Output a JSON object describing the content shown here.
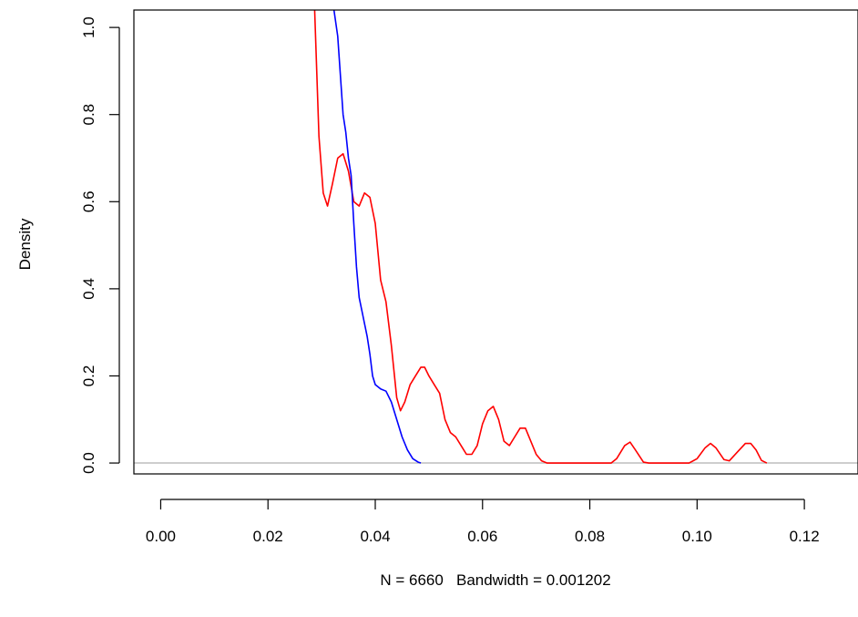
{
  "chart_data": {
    "type": "line",
    "title": "",
    "xlabel": "N = 6660   Bandwidth = 0.001202",
    "ylabel": "Density",
    "xlim": [
      -0.005,
      0.13
    ],
    "ylim": [
      -0.025,
      1.04
    ],
    "x_ticks": [
      0.0,
      0.02,
      0.04,
      0.06,
      0.08,
      0.1,
      0.12
    ],
    "x_tick_labels": [
      "0.00",
      "0.02",
      "0.04",
      "0.06",
      "0.08",
      "0.10",
      "0.12"
    ],
    "y_ticks": [
      0.0,
      0.2,
      0.4,
      0.6,
      0.8,
      1.0
    ],
    "y_tick_labels": [
      "0.0",
      "0.2",
      "0.4",
      "0.6",
      "0.8",
      "1.0"
    ],
    "baseline": {
      "y": 0,
      "color": "#bebebe"
    },
    "grid": false,
    "legend": "none",
    "series": [
      {
        "color": "#ff0000",
        "points": [
          [
            0.0287,
            1.04
          ],
          [
            0.0295,
            0.75
          ],
          [
            0.0303,
            0.62
          ],
          [
            0.0311,
            0.59
          ],
          [
            0.032,
            0.64
          ],
          [
            0.033,
            0.7
          ],
          [
            0.034,
            0.71
          ],
          [
            0.035,
            0.67
          ],
          [
            0.036,
            0.6
          ],
          [
            0.037,
            0.59
          ],
          [
            0.038,
            0.62
          ],
          [
            0.039,
            0.61
          ],
          [
            0.04,
            0.55
          ],
          [
            0.041,
            0.42
          ],
          [
            0.042,
            0.37
          ],
          [
            0.043,
            0.27
          ],
          [
            0.044,
            0.15
          ],
          [
            0.0447,
            0.12
          ],
          [
            0.0455,
            0.14
          ],
          [
            0.0465,
            0.18
          ],
          [
            0.0475,
            0.2
          ],
          [
            0.0485,
            0.22
          ],
          [
            0.0492,
            0.22
          ],
          [
            0.05,
            0.2
          ],
          [
            0.051,
            0.18
          ],
          [
            0.052,
            0.16
          ],
          [
            0.053,
            0.1
          ],
          [
            0.054,
            0.07
          ],
          [
            0.055,
            0.06
          ],
          [
            0.056,
            0.04
          ],
          [
            0.057,
            0.02
          ],
          [
            0.058,
            0.02
          ],
          [
            0.059,
            0.04
          ],
          [
            0.06,
            0.09
          ],
          [
            0.061,
            0.12
          ],
          [
            0.062,
            0.13
          ],
          [
            0.063,
            0.1
          ],
          [
            0.064,
            0.05
          ],
          [
            0.065,
            0.04
          ],
          [
            0.066,
            0.06
          ],
          [
            0.067,
            0.08
          ],
          [
            0.068,
            0.08
          ],
          [
            0.069,
            0.05
          ],
          [
            0.07,
            0.02
          ],
          [
            0.071,
            0.005
          ],
          [
            0.072,
            0.0
          ],
          [
            0.084,
            0.0
          ],
          [
            0.085,
            0.01
          ],
          [
            0.0865,
            0.04
          ],
          [
            0.0875,
            0.048
          ],
          [
            0.0885,
            0.03
          ],
          [
            0.09,
            0.002
          ],
          [
            0.091,
            0.0
          ],
          [
            0.0985,
            0.0
          ],
          [
            0.1,
            0.01
          ],
          [
            0.1015,
            0.035
          ],
          [
            0.1025,
            0.045
          ],
          [
            0.1035,
            0.035
          ],
          [
            0.105,
            0.008
          ],
          [
            0.106,
            0.005
          ],
          [
            0.1075,
            0.025
          ],
          [
            0.109,
            0.045
          ],
          [
            0.11,
            0.045
          ],
          [
            0.111,
            0.03
          ],
          [
            0.112,
            0.006
          ],
          [
            0.113,
            0.0
          ]
        ]
      },
      {
        "color": "#0000ff",
        "points": [
          [
            0.0323,
            1.04
          ],
          [
            0.033,
            0.98
          ],
          [
            0.034,
            0.8
          ],
          [
            0.0345,
            0.76
          ],
          [
            0.035,
            0.7
          ],
          [
            0.0355,
            0.66
          ],
          [
            0.036,
            0.55
          ],
          [
            0.0365,
            0.45
          ],
          [
            0.037,
            0.38
          ],
          [
            0.0375,
            0.35
          ],
          [
            0.038,
            0.32
          ],
          [
            0.0385,
            0.29
          ],
          [
            0.039,
            0.25
          ],
          [
            0.0395,
            0.2
          ],
          [
            0.04,
            0.18
          ],
          [
            0.041,
            0.17
          ],
          [
            0.042,
            0.165
          ],
          [
            0.043,
            0.14
          ],
          [
            0.044,
            0.1
          ],
          [
            0.045,
            0.06
          ],
          [
            0.046,
            0.03
          ],
          [
            0.047,
            0.01
          ],
          [
            0.048,
            0.002
          ],
          [
            0.0485,
            0.0
          ]
        ]
      }
    ]
  }
}
